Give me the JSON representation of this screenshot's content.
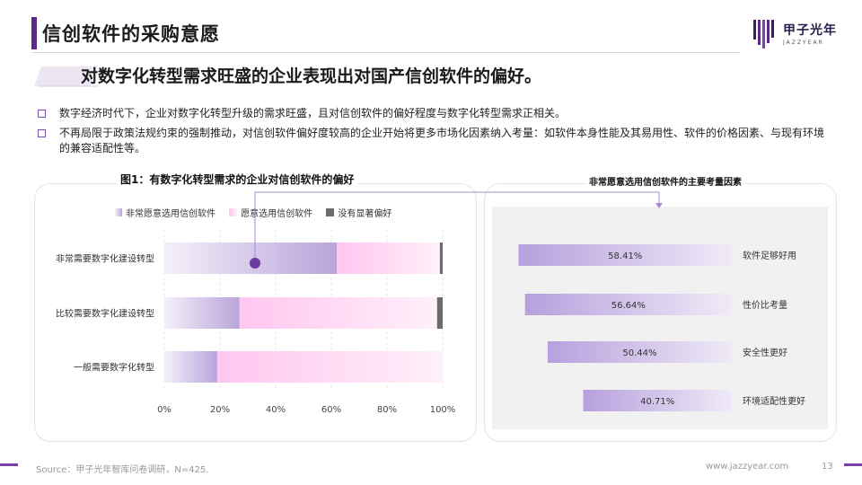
{
  "page": {
    "title": "信创软件的采购意愿",
    "headline": "对数字化转型需求旺盛的企业表现出对国产信创软件的偏好。",
    "bullets": [
      "数字经济时代下，企业对数字化转型升级的需求旺盛，且对信创软件的偏好程度与数字化转型需求正相关。",
      "不再局限于政策法规约束的强制推动，对信创软件偏好度较高的企业开始将更多市场化因素纳入考量：如软件本身性能及其易用性、软件的价格因素、与现有环境的兼容适配性等。"
    ],
    "source": "Source：甲子光年智库问卷调研，N=425.",
    "website": "www.jazzyear.com",
    "page_number": "13"
  },
  "brand": {
    "name_cn": "甲子光年",
    "name_en": "JAZZYEAR"
  },
  "colors": {
    "brand_purple": "#5b2a86",
    "series_very": "#b9a4da",
    "series_willing": "#ffc6ef",
    "series_none": "#6b6b6b",
    "hbar": "#b7a0dd",
    "panel_bg": "#f1f1f1"
  },
  "chart_data": [
    {
      "type": "bar",
      "orientation": "horizontal",
      "stacked": true,
      "title": "图1：有数字化转型需求的企业对信创软件的偏好",
      "categories": [
        "非常需要数字化建设转型",
        "比较需要数字化建设转型",
        "一般需要数字化转型"
      ],
      "series": [
        {
          "name": "非常愿意选用信创软件",
          "values": [
            62,
            27,
            19
          ]
        },
        {
          "name": "愿意选用信创软件",
          "values": [
            37,
            71,
            81
          ]
        },
        {
          "name": "没有显著偏好",
          "values": [
            1,
            2,
            0
          ]
        }
      ],
      "xlim": [
        0,
        100
      ],
      "xticks": [
        "0%",
        "20%",
        "40%",
        "60%",
        "80%",
        "100%"
      ],
      "legend": "top"
    },
    {
      "type": "bar",
      "orientation": "horizontal",
      "title": "非常愿意选用信创软件的主要考量因素",
      "categories": [
        "软件足够好用",
        "性价比考量",
        "安全性更好",
        "环境适配性更好"
      ],
      "values": [
        58.41,
        56.64,
        50.44,
        40.71
      ],
      "labels": [
        "58.41%",
        "56.64%",
        "50.44%",
        "40.71%"
      ],
      "unit": "%"
    }
  ]
}
